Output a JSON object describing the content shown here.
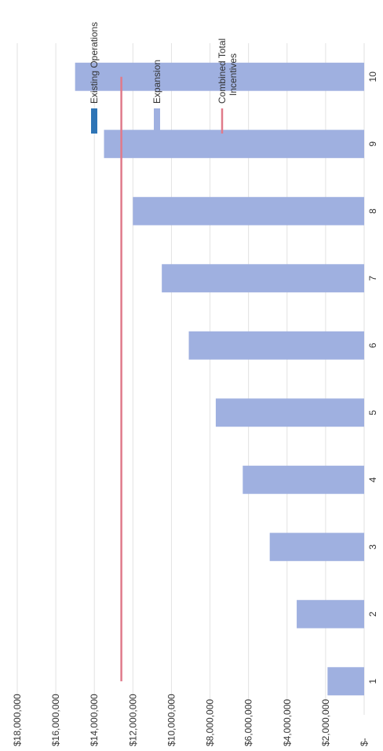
{
  "chart_data": {
    "type": "bar",
    "orientation": "rotated-90",
    "categories": [
      "1",
      "2",
      "3",
      "4",
      "5",
      "6",
      "7",
      "8",
      "9",
      "10"
    ],
    "series": [
      {
        "name": "Existing Operations",
        "type": "bar",
        "color": "#2e75b6",
        "values": [
          0,
          0,
          0,
          0,
          0,
          0,
          0,
          0,
          0,
          0
        ]
      },
      {
        "name": "Expansion",
        "type": "bar",
        "color": "#9fb0e0",
        "values": [
          1900000,
          3500000,
          4900000,
          6300000,
          7700000,
          9100000,
          10500000,
          12000000,
          13500000,
          15000000
        ]
      },
      {
        "name": "Combined Total Incentives",
        "type": "line",
        "color": "#e07a8a",
        "values": [
          12600000,
          12600000,
          12600000,
          12600000,
          12600000,
          12600000,
          12600000,
          12600000,
          12600000,
          12600000
        ]
      }
    ],
    "value_ticks": [
      "$-",
      "$2,000,000",
      "$4,000,000",
      "$6,000,000",
      "$8,000,000",
      "$10,000,000",
      "$12,000,000",
      "$14,000,000",
      "$16,000,000",
      "$18,000,000"
    ],
    "ylim": [
      0,
      18000000
    ],
    "grid": true,
    "legend_position": "top"
  }
}
